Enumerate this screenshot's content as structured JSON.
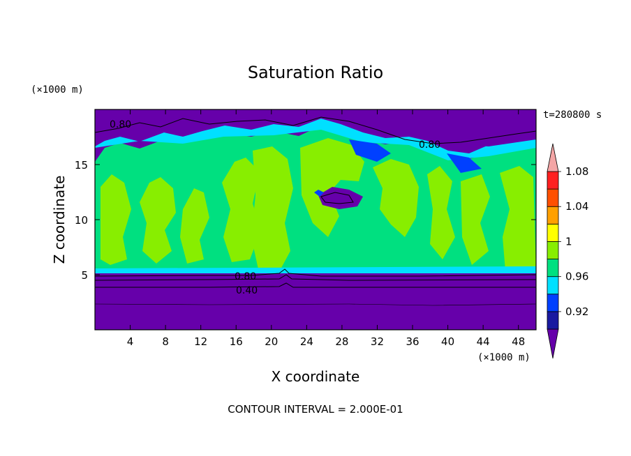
{
  "chart_data": {
    "type": "heatmap",
    "title": "Saturation Ratio",
    "xlabel": "X coordinate",
    "ylabel": "Z coordinate",
    "x_unit": "(×1000 m)",
    "y_unit": "(×1000 m)",
    "time_label": "t=280800 s",
    "footer": "CONTOUR INTERVAL = 2.000E-01",
    "xlim": [
      0,
      50
    ],
    "ylim": [
      0,
      20
    ],
    "x_ticks": [
      "4",
      "8",
      "12",
      "16",
      "20",
      "24",
      "28",
      "32",
      "36",
      "40",
      "44",
      "48"
    ],
    "y_ticks": [
      "5",
      "10",
      "15"
    ],
    "contour_labels": [
      "0.80",
      "0.80",
      "0.80",
      "0.40"
    ],
    "colorbar": {
      "labels": [
        "0.92",
        "0.96",
        "1",
        "1.04",
        "1.08"
      ],
      "levels": [
        0.92,
        0.94,
        0.96,
        0.98,
        1.0,
        1.02,
        1.04,
        1.06,
        1.08,
        1.1
      ],
      "colors": [
        "#6600aa",
        "#1a1aa0",
        "#0040ff",
        "#00e0ff",
        "#00e080",
        "#88ee00",
        "#ffff00",
        "#ffa000",
        "#ff5000",
        "#ff2020",
        "#f4a6a6"
      ]
    }
  }
}
